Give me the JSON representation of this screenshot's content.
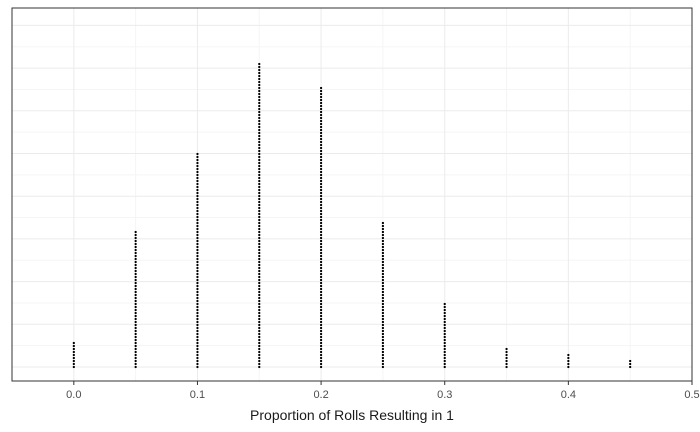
{
  "chart_data": {
    "type": "dotplot",
    "xlabel": "Proportion of Rolls Resulting in 1",
    "ylabel": "",
    "title": "",
    "xlim": [
      -0.05,
      0.5
    ],
    "x_ticks": [
      "0.0",
      "0.1",
      "0.2",
      "0.3",
      "0.4",
      "0.5"
    ],
    "grid": true,
    "points": [
      {
        "x": 0.0,
        "count": 9
      },
      {
        "x": 0.05,
        "count": 46
      },
      {
        "x": 0.1,
        "count": 72
      },
      {
        "x": 0.15,
        "count": 102
      },
      {
        "x": 0.2,
        "count": 94
      },
      {
        "x": 0.25,
        "count": 49
      },
      {
        "x": 0.3,
        "count": 22
      },
      {
        "x": 0.35,
        "count": 7
      },
      {
        "x": 0.4,
        "count": 5
      },
      {
        "x": 0.45,
        "count": 3
      }
    ],
    "colors": {
      "dots": "#000000",
      "panel_border": "#333333",
      "grid_major": "#ebebeb",
      "grid_minor": "#f5f5f5",
      "tick_text": "#4d4d4d"
    }
  }
}
